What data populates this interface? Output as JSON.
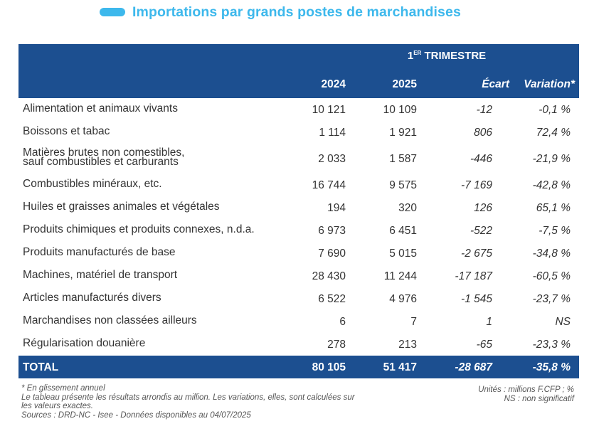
{
  "title": "Importations par grands postes de marchandises",
  "header": {
    "period_sup": "ER",
    "period_num": "1",
    "period_text": "TRIMESTRE",
    "col_2024": "2024",
    "col_2025": "2025",
    "col_ecart": "Écart",
    "col_variation": "Variation*"
  },
  "rows": [
    {
      "label": "Alimentation et animaux vivants",
      "v2024": "10 121",
      "v2025": "10 109",
      "ecart": "-12",
      "variation": "-0,1 %"
    },
    {
      "label": "Boissons et tabac",
      "v2024": "1 114",
      "v2025": "1 921",
      "ecart": "806",
      "variation": "72,4 %"
    },
    {
      "label_line1": "Matières brutes non comestibles,",
      "label_line2": "sauf combustibles et carburants",
      "v2024": "2 033",
      "v2025": "1 587",
      "ecart": "-446",
      "variation": "-21,9 %"
    },
    {
      "label": "Combustibles minéraux, etc.",
      "v2024": "16 744",
      "v2025": "9 575",
      "ecart": "-7 169",
      "variation": "-42,8 %"
    },
    {
      "label": "Huiles et graisses animales et végétales",
      "v2024": "194",
      "v2025": "320",
      "ecart": "126",
      "variation": "65,1 %"
    },
    {
      "label": "Produits chimiques et produits connexes, n.d.a.",
      "v2024": "6 973",
      "v2025": "6 451",
      "ecart": "-522",
      "variation": "-7,5 %"
    },
    {
      "label": "Produits manufacturés de base",
      "v2024": "7 690",
      "v2025": "5 015",
      "ecart": "-2 675",
      "variation": "-34,8 %"
    },
    {
      "label": "Machines, matériel de transport",
      "v2024": "28 430",
      "v2025": "11 244",
      "ecart": "-17 187",
      "variation": "-60,5 %"
    },
    {
      "label": "Articles manufacturés divers",
      "v2024": "6 522",
      "v2025": "4 976",
      "ecart": "-1 545",
      "variation": "-23,7 %"
    },
    {
      "label": "Marchandises non classées ailleurs",
      "v2024": "6",
      "v2025": "7",
      "ecart": "1",
      "variation": "NS"
    },
    {
      "label": "Régularisation douanière",
      "v2024": "278",
      "v2025": "213",
      "ecart": "-65",
      "variation": "-23,3 %"
    }
  ],
  "total": {
    "label": "TOTAL",
    "v2024": "80 105",
    "v2025": "51 417",
    "ecart": "-28 687",
    "variation": "-35,8 %"
  },
  "notes": {
    "line1": "* En glissement annuel",
    "line2": "Le tableau présente les résultats arrondis au million. Les variations, elles, sont calculées sur",
    "line3": "les valeurs exactes.",
    "line4": "Sources : DRD-NC - Isee - Données disponibles au 04/07/2025"
  },
  "units": {
    "line1": "Unités : millions F.CFP ; %",
    "line2": "NS : non significatif"
  }
}
